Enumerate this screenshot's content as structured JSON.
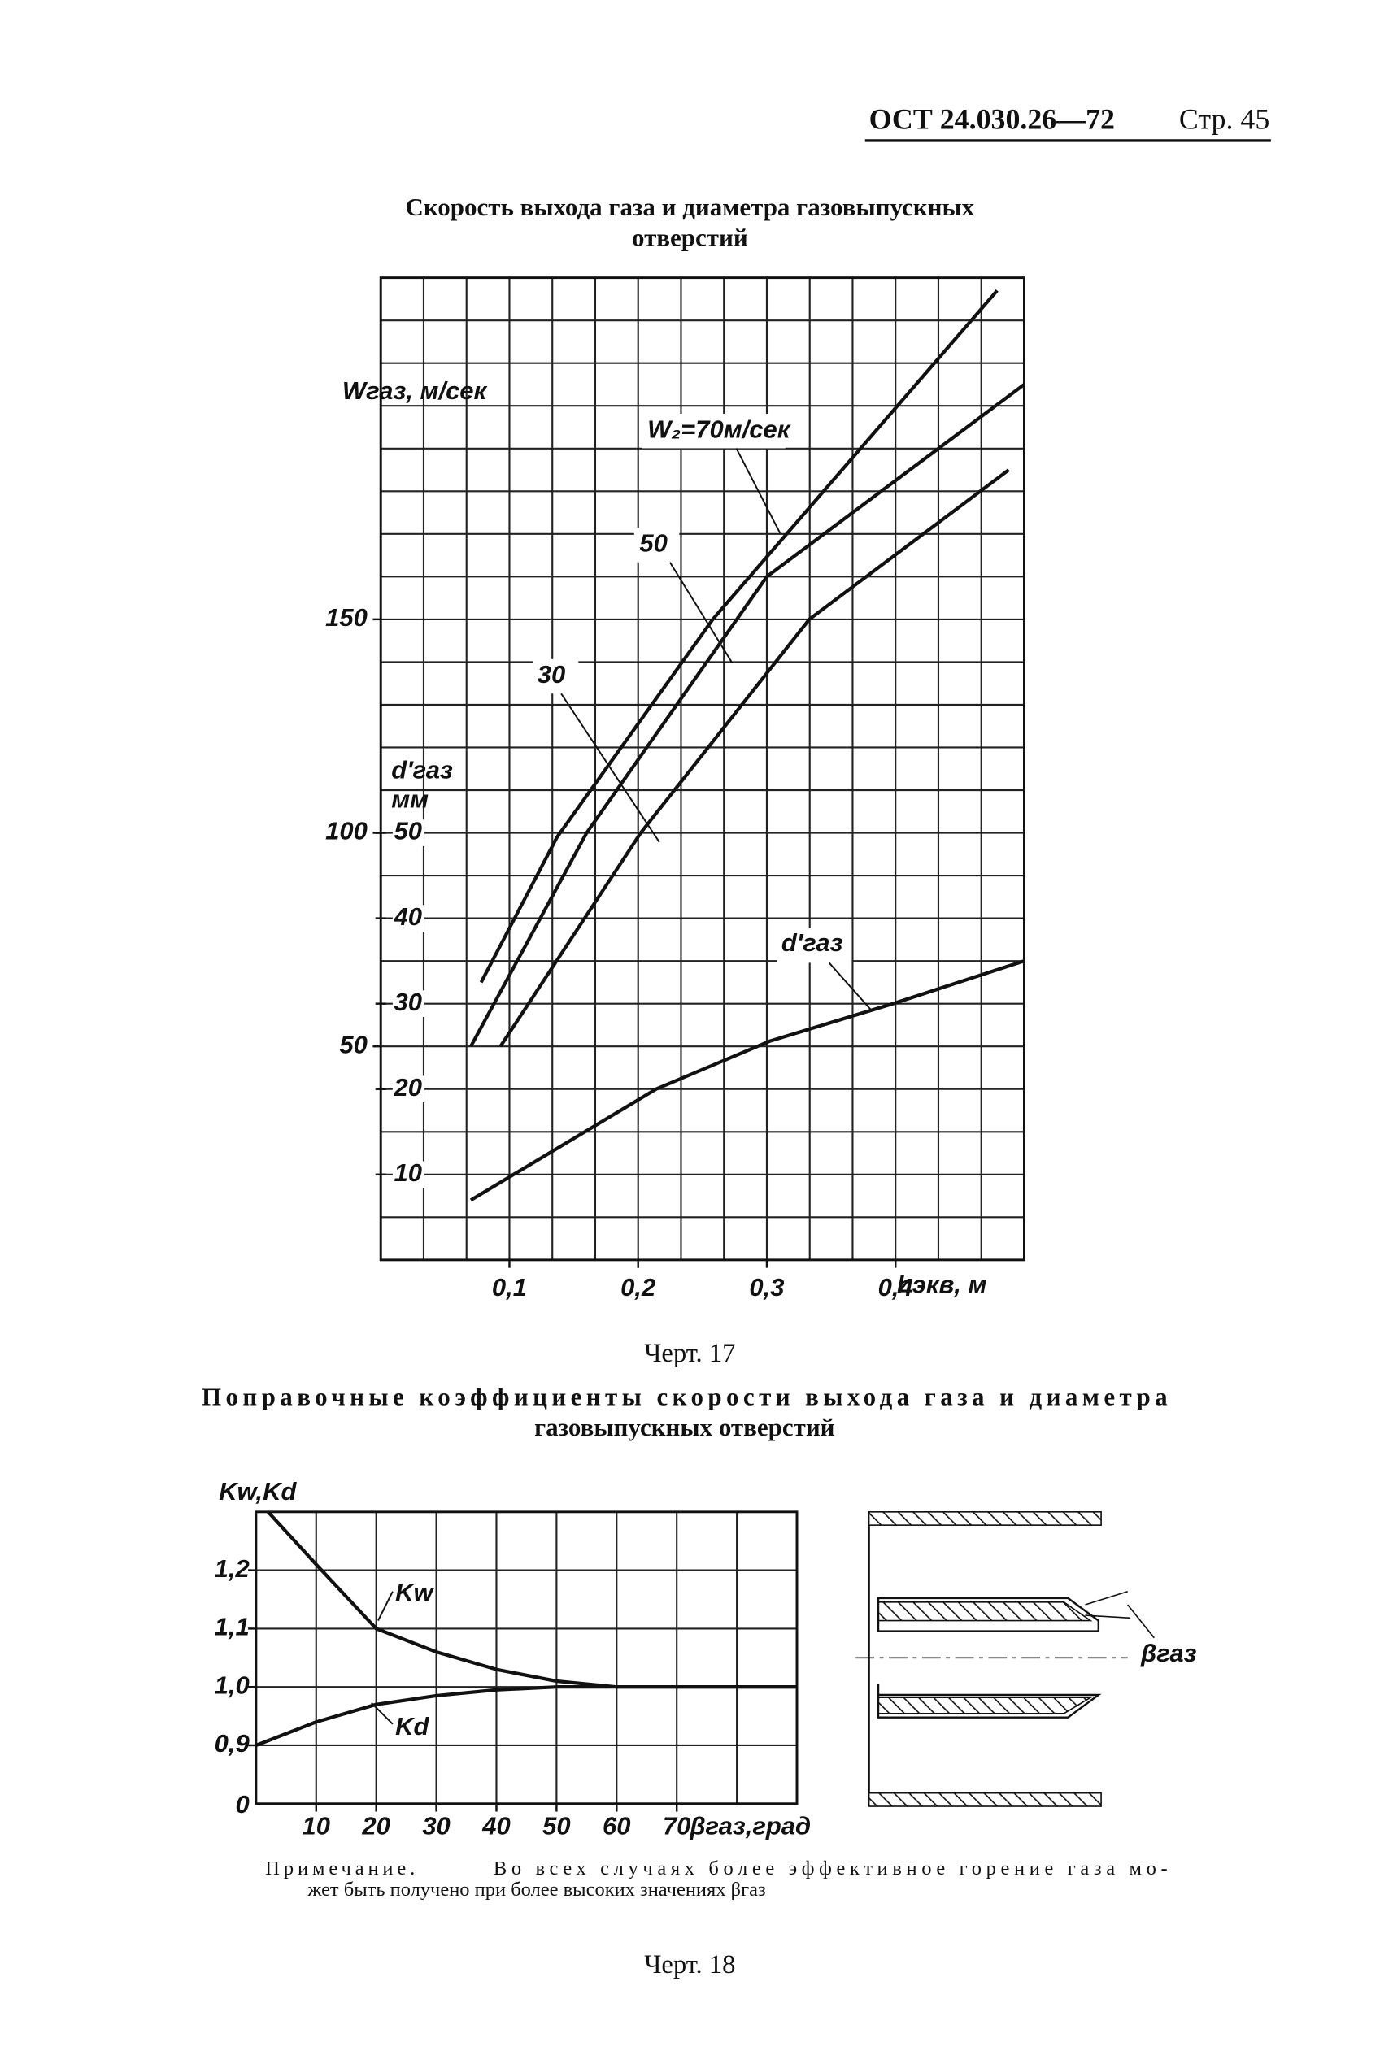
{
  "header": {
    "standard": "ОСТ 24.030.26—72",
    "page": "Стр. 45"
  },
  "chart_data": [
    {
      "type": "line",
      "title": [
        "Скорость выхода газа и диаметра газовыпускных",
        "отверстий"
      ],
      "caption": "Черт. 17",
      "xlabel": "hэкв, м",
      "ylabel": "Wгаз, м/сек",
      "y2label": "d′газ",
      "y2unit": "мм",
      "xlim": [
        0,
        0.5
      ],
      "xticks": [
        {
          "value": 0.1,
          "label": "0,1"
        },
        {
          "value": 0.2,
          "label": "0,2"
        },
        {
          "value": 0.3,
          "label": "0,3"
        },
        {
          "value": 0.4,
          "label": "0,4"
        }
      ],
      "ylim": [
        0,
        230
      ],
      "yticks": [
        50,
        100,
        150
      ],
      "y2lim": [
        0,
        115
      ],
      "y2ticks": [
        10,
        20,
        30,
        40,
        50
      ],
      "grid": true,
      "grid_divisions": [
        3,
        5
      ],
      "series": [
        {
          "name": "W₂=70м/сек",
          "color": "#111111",
          "x": [
            0.078,
            0.137,
            0.258,
            0.479
          ],
          "values": [
            65,
            99,
            150,
            227
          ]
        },
        {
          "name": "50",
          "color": "#111111",
          "x": [
            0.07,
            0.16,
            0.3,
            0.5
          ],
          "values": [
            50,
            100,
            160,
            205
          ]
        },
        {
          "name": "30",
          "color": "#111111",
          "x": [
            0.093,
            0.202,
            0.333,
            0.488
          ],
          "values": [
            50,
            100,
            150,
            185
          ]
        },
        {
          "name": "d′газ",
          "color": "#111111",
          "axis": "y2",
          "x": [
            0.07,
            0.214,
            0.302,
            0.398,
            0.5
          ],
          "values": [
            7,
            20,
            25.6,
            30,
            35
          ]
        }
      ]
    },
    {
      "type": "line",
      "title": [
        "Поправочные коэффициенты скорости выхода газа и диаметра",
        "газовыпускных отверстий"
      ],
      "caption": "Черт. 18",
      "xlabel": "βгаз,град",
      "ylabel": "Kw,Kd",
      "y_origin_label": "0",
      "xlim": [
        0,
        90
      ],
      "xticks": [
        10,
        20,
        30,
        40,
        50,
        60,
        70
      ],
      "ylim": [
        0.8,
        1.3
      ],
      "yticks": [
        {
          "value": 0.9,
          "label": "0,9"
        },
        {
          "value": 1.0,
          "label": "1,0"
        },
        {
          "value": 1.1,
          "label": "1,1"
        },
        {
          "value": 1.2,
          "label": "1,2"
        }
      ],
      "grid": true,
      "grid_divisions": [
        1,
        1
      ],
      "series": [
        {
          "name": "Kw",
          "color": "#111111",
          "x": [
            2,
            10,
            20,
            30,
            40,
            50,
            60,
            90
          ],
          "values": [
            1.3,
            1.21,
            1.1,
            1.06,
            1.03,
            1.01,
            1.0,
            1.0
          ]
        },
        {
          "name": "Kd",
          "color": "#111111",
          "x": [
            0,
            10,
            20,
            30,
            40,
            50,
            90
          ],
          "values": [
            0.9,
            0.94,
            0.97,
            0.985,
            0.995,
            1.0,
            1.0
          ]
        }
      ]
    }
  ],
  "diagram": {
    "angle_label": "βгаз"
  },
  "note": {
    "label": "Примечание.",
    "lines": [
      "Во всех случаях более эффективное горение газа мо-",
      "жет быть получено при более высоких значениях βгаз"
    ]
  }
}
